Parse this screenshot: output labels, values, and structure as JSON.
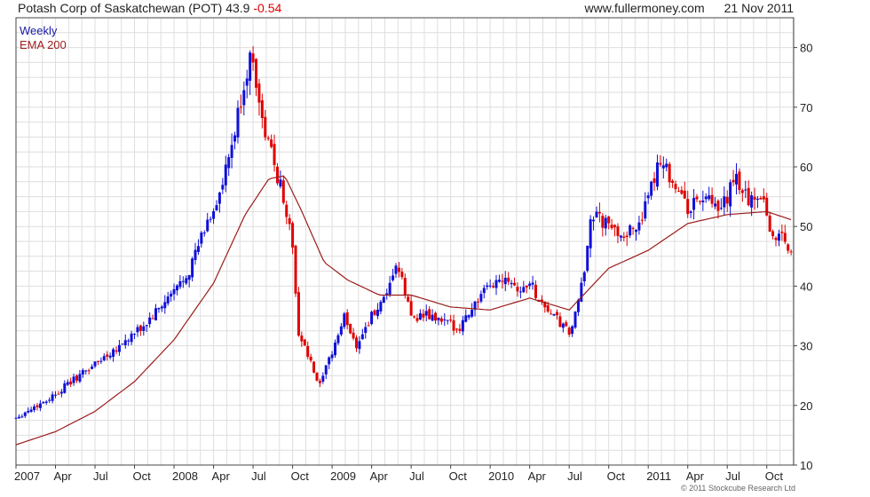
{
  "header": {
    "title": "Potash Corp of Saskatchewan (POT)",
    "last": "43.9",
    "change": "-0.54",
    "source": "www.fullermoney.com",
    "date": "21 Nov 2011"
  },
  "copyright": "© 2011 Stockcube Research Ltd",
  "colors": {
    "up": "#1010d8",
    "down": "#e00000",
    "ema": "#9b1c1c",
    "grid": "#dedede"
  },
  "chart_data": {
    "type": "candlestick",
    "interval": "Weekly",
    "series": [
      {
        "name": "Weekly",
        "kind": "ohlc"
      },
      {
        "name": "EMA 200",
        "kind": "line"
      }
    ],
    "ylim": [
      10,
      85
    ],
    "yticks": [
      10,
      20,
      30,
      40,
      50,
      60,
      70,
      80
    ],
    "xlim": [
      2007.0,
      2011.92
    ],
    "xticks": [
      {
        "t": 2007.0,
        "label": "2007"
      },
      {
        "t": 2007.25,
        "label": "Apr"
      },
      {
        "t": 2007.5,
        "label": "Jul"
      },
      {
        "t": 2007.75,
        "label": "Oct"
      },
      {
        "t": 2008.0,
        "label": "2008"
      },
      {
        "t": 2008.25,
        "label": "Apr"
      },
      {
        "t": 2008.5,
        "label": "Jul"
      },
      {
        "t": 2008.75,
        "label": "Oct"
      },
      {
        "t": 2009.0,
        "label": "2009"
      },
      {
        "t": 2009.25,
        "label": "Apr"
      },
      {
        "t": 2009.5,
        "label": "Jul"
      },
      {
        "t": 2009.75,
        "label": "Oct"
      },
      {
        "t": 2010.0,
        "label": "2010"
      },
      {
        "t": 2010.25,
        "label": "Apr"
      },
      {
        "t": 2010.5,
        "label": "Jul"
      },
      {
        "t": 2010.75,
        "label": "Oct"
      },
      {
        "t": 2011.0,
        "label": "2011"
      },
      {
        "t": 2011.25,
        "label": "Apr"
      },
      {
        "t": 2011.5,
        "label": "Jul"
      },
      {
        "t": 2011.75,
        "label": "Oct"
      }
    ],
    "close_path": [
      [
        2007.0,
        18
      ],
      [
        2007.1,
        19.5
      ],
      [
        2007.2,
        21
      ],
      [
        2007.3,
        23
      ],
      [
        2007.4,
        25
      ],
      [
        2007.5,
        27
      ],
      [
        2007.6,
        29
      ],
      [
        2007.7,
        31
      ],
      [
        2007.8,
        33
      ],
      [
        2007.9,
        36
      ],
      [
        2008.0,
        39
      ],
      [
        2008.1,
        43
      ],
      [
        2008.2,
        50
      ],
      [
        2008.3,
        56
      ],
      [
        2008.38,
        65
      ],
      [
        2008.45,
        75
      ],
      [
        2008.5,
        79
      ],
      [
        2008.55,
        68
      ],
      [
        2008.62,
        62
      ],
      [
        2008.7,
        54
      ],
      [
        2008.75,
        47
      ],
      [
        2008.78,
        33
      ],
      [
        2008.85,
        28
      ],
      [
        2008.92,
        23
      ],
      [
        2009.0,
        29
      ],
      [
        2009.08,
        35
      ],
      [
        2009.15,
        30
      ],
      [
        2009.25,
        35
      ],
      [
        2009.35,
        38
      ],
      [
        2009.4,
        44
      ],
      [
        2009.45,
        40
      ],
      [
        2009.5,
        35
      ],
      [
        2009.6,
        35
      ],
      [
        2009.7,
        34
      ],
      [
        2009.8,
        33
      ],
      [
        2009.9,
        37
      ],
      [
        2010.0,
        40
      ],
      [
        2010.1,
        42
      ],
      [
        2010.2,
        39
      ],
      [
        2010.25,
        41
      ],
      [
        2010.3,
        38
      ],
      [
        2010.4,
        35
      ],
      [
        2010.5,
        32
      ],
      [
        2010.55,
        36
      ],
      [
        2010.6,
        43
      ],
      [
        2010.63,
        52
      ],
      [
        2010.7,
        51
      ],
      [
        2010.8,
        49
      ],
      [
        2010.9,
        49
      ],
      [
        2011.0,
        54
      ],
      [
        2011.07,
        62
      ],
      [
        2011.15,
        58
      ],
      [
        2011.25,
        53
      ],
      [
        2011.35,
        55
      ],
      [
        2011.45,
        52
      ],
      [
        2011.55,
        58
      ],
      [
        2011.65,
        54
      ],
      [
        2011.72,
        56
      ],
      [
        2011.78,
        48
      ],
      [
        2011.85,
        49
      ],
      [
        2011.92,
        44
      ]
    ],
    "ema_path": [
      [
        2007.0,
        13.4
      ],
      [
        2007.25,
        15.6
      ],
      [
        2007.5,
        19.0
      ],
      [
        2007.75,
        24.0
      ],
      [
        2008.0,
        31.0
      ],
      [
        2008.25,
        40.5
      ],
      [
        2008.45,
        52.0
      ],
      [
        2008.6,
        58.0
      ],
      [
        2008.7,
        58.5
      ],
      [
        2008.8,
        53.0
      ],
      [
        2008.95,
        44.0
      ],
      [
        2009.1,
        41.0
      ],
      [
        2009.3,
        38.5
      ],
      [
        2009.5,
        38.5
      ],
      [
        2009.75,
        36.5
      ],
      [
        2010.0,
        36.0
      ],
      [
        2010.25,
        38.0
      ],
      [
        2010.5,
        36.0
      ],
      [
        2010.75,
        43.0
      ],
      [
        2011.0,
        46.0
      ],
      [
        2011.25,
        50.5
      ],
      [
        2011.5,
        52.0
      ],
      [
        2011.75,
        52.5
      ],
      [
        2011.92,
        51.0
      ]
    ]
  }
}
